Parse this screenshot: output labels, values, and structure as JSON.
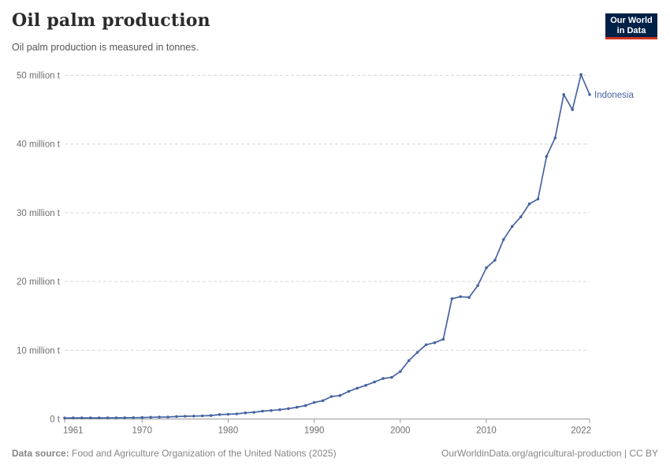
{
  "header": {
    "title": "Oil palm production",
    "subtitle": "Oil palm production is measured in tonnes.",
    "logo": {
      "line1": "Our World",
      "line2": "in Data",
      "bg_color": "#002147",
      "accent_color": "#d1341f"
    }
  },
  "chart_data": {
    "type": "line",
    "title": "Oil palm production",
    "subtitle": "Oil palm production is measured in tonnes.",
    "unit": "tonnes",
    "values_unit": "million tonnes",
    "xlim": [
      1961,
      2022
    ],
    "ylim": [
      0,
      50
    ],
    "grid": "horizontal-dashed",
    "legend": "end-of-line-label",
    "x_ticks": [
      1961,
      1970,
      1980,
      1990,
      2000,
      2010,
      2022
    ],
    "y_ticks": [
      {
        "value": 0,
        "label": "0 t"
      },
      {
        "value": 10,
        "label": "10 million t"
      },
      {
        "value": 20,
        "label": "20 million t"
      },
      {
        "value": 30,
        "label": "30 million t"
      },
      {
        "value": 40,
        "label": "40 million t"
      },
      {
        "value": 50,
        "label": "50 million t"
      }
    ],
    "years": [
      1961,
      1962,
      1963,
      1964,
      1965,
      1966,
      1967,
      1968,
      1969,
      1970,
      1971,
      1972,
      1973,
      1974,
      1975,
      1976,
      1977,
      1978,
      1979,
      1980,
      1981,
      1982,
      1983,
      1984,
      1985,
      1986,
      1987,
      1988,
      1989,
      1990,
      1991,
      1992,
      1993,
      1994,
      1995,
      1996,
      1997,
      1998,
      1999,
      2000,
      2001,
      2002,
      2003,
      2004,
      2005,
      2006,
      2007,
      2008,
      2009,
      2010,
      2011,
      2012,
      2013,
      2014,
      2015,
      2016,
      2017,
      2018,
      2019,
      2020,
      2021,
      2022
    ],
    "series": [
      {
        "name": "Indonesia",
        "color": "#4664a0",
        "values_million_t": [
          0.15,
          0.16,
          0.16,
          0.16,
          0.16,
          0.17,
          0.17,
          0.18,
          0.19,
          0.22,
          0.25,
          0.27,
          0.29,
          0.35,
          0.4,
          0.43,
          0.46,
          0.5,
          0.64,
          0.69,
          0.75,
          0.89,
          0.98,
          1.15,
          1.24,
          1.35,
          1.51,
          1.71,
          1.96,
          2.41,
          2.66,
          3.27,
          3.42,
          4.01,
          4.48,
          4.9,
          5.38,
          5.9,
          6.06,
          6.9,
          8.5,
          9.7,
          10.8,
          11.1,
          11.6,
          17.5,
          17.8,
          17.7,
          19.4,
          22.0,
          23.1,
          26.1,
          28.0,
          29.4,
          31.3,
          32.0,
          38.2,
          40.9,
          47.2,
          45.0,
          50.1,
          47.2
        ]
      }
    ]
  },
  "footer": {
    "datasource_label": "Data source:",
    "datasource_text": " Food and Agriculture Organization of the United Nations (2025)",
    "right_text": "OurWorldinData.org/agricultural-production | CC BY"
  },
  "colors": {
    "line": "#4664a0",
    "grid": "#d6d6d6",
    "axis": "#999999",
    "tick_label": "#6e6e6e",
    "title": "#2b2b2b",
    "subtitle": "#555555",
    "footer": "#858585"
  }
}
